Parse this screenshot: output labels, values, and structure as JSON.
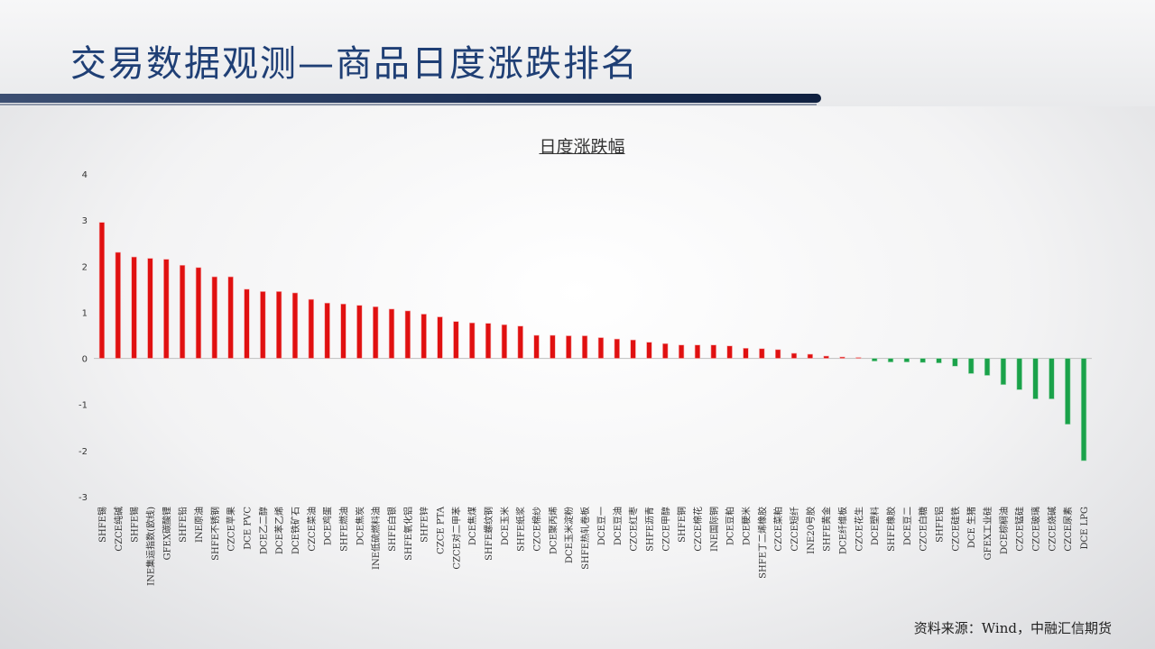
{
  "page": {
    "title": "交易数据观测—商品日度涨跌排名",
    "source": "资料来源：Wind，中融汇信期货"
  },
  "colors": {
    "positive": "#e01010",
    "negative": "#1aa24a",
    "title": "#1f3f75"
  },
  "chart_data": {
    "type": "bar",
    "title": "日度涨跌幅",
    "ylim": [
      -3,
      4
    ],
    "yticks": [
      4,
      3,
      2,
      1,
      0,
      -1,
      -2,
      -3
    ],
    "grid": false,
    "legend": "none",
    "categories": [
      "SHFE锡",
      "CZCE纯碱",
      "SHFE锡",
      "INE集运指数(欧线)",
      "GFEX碳酸锂",
      "SHFE铅",
      "INE原油",
      "SHFE不锈钢",
      "CZCE苹果",
      "DCE PVC",
      "DCE乙二醇",
      "DCE苯乙烯",
      "DCE铁矿石",
      "CZCE菜油",
      "DCE鸡蛋",
      "SHFE燃油",
      "DCE焦炭",
      "INE低硫燃料油",
      "SHFE白银",
      "SHFE氧化铝",
      "SHFE锌",
      "CZCE PTA",
      "CZCE对二甲苯",
      "DCE焦煤",
      "SHFE螺纹钢",
      "DCE玉米",
      "SHFE纸浆",
      "CZCE棉纱",
      "DCE聚丙烯",
      "DCE玉米淀粉",
      "SHFE热轧卷板",
      "DCE豆一",
      "DCE豆油",
      "CZCE红枣",
      "SHFE沥青",
      "CZCE甲醇",
      "SHFE铜",
      "CZCE棉花",
      "INE国际铜",
      "DCE豆粕",
      "DCE粳米",
      "SHFE丁二烯橡胶",
      "CZCE菜粕",
      "CZCE短纤",
      "INE20号胶",
      "SHFE黄金",
      "DCE纤维板",
      "CZCE花生",
      "DCE塑料",
      "SHFE橡胶",
      "DCE豆二",
      "CZCE白糖",
      "SHFE铝",
      "CZCE硅铁",
      "DCE 生猪",
      "GFEX工业硅",
      "DCE棕榈油",
      "CZCE锰硅",
      "CZCE玻璃",
      "CZCE烧碱",
      "CZCE尿素",
      "DCE LPG"
    ],
    "values": [
      2.95,
      2.3,
      2.2,
      2.17,
      2.15,
      2.02,
      1.97,
      1.77,
      1.77,
      1.5,
      1.45,
      1.45,
      1.42,
      1.28,
      1.2,
      1.18,
      1.15,
      1.12,
      1.07,
      1.03,
      0.96,
      0.9,
      0.8,
      0.77,
      0.76,
      0.73,
      0.7,
      0.5,
      0.5,
      0.49,
      0.49,
      0.45,
      0.42,
      0.4,
      0.35,
      0.32,
      0.29,
      0.29,
      0.29,
      0.27,
      0.22,
      0.21,
      0.19,
      0.11,
      0.09,
      0.05,
      0.03,
      0.02,
      -0.06,
      -0.08,
      -0.08,
      -0.09,
      -0.1,
      -0.17,
      -0.33,
      -0.37,
      -0.57,
      -0.68,
      -0.88,
      -0.88,
      -1.43,
      -2.22
    ]
  }
}
